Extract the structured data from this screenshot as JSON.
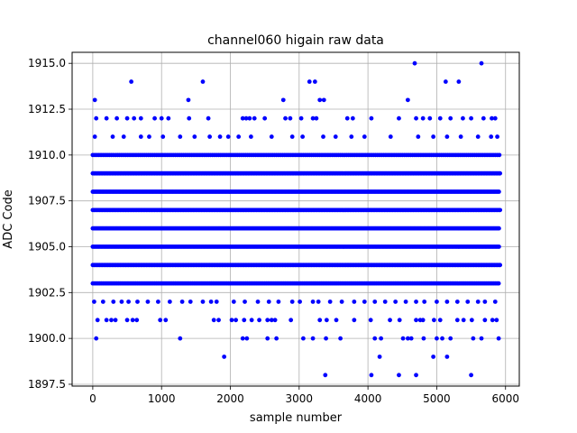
{
  "chart_data": {
    "type": "scatter",
    "title": "channel060 higain raw data",
    "xlabel": "sample number",
    "ylabel": "ADC Code",
    "xlim": [
      -300,
      6200
    ],
    "ylim": [
      1897.4,
      1915.6
    ],
    "x_ticks": [
      0,
      1000,
      2000,
      3000,
      4000,
      5000,
      6000
    ],
    "x_tick_labels": [
      "0",
      "1000",
      "2000",
      "3000",
      "4000",
      "5000",
      "6000"
    ],
    "y_ticks": [
      1897.5,
      1900.0,
      1902.5,
      1905.0,
      1907.5,
      1910.0,
      1912.5,
      1915.0
    ],
    "y_tick_labels": [
      "1897.5",
      "1900.0",
      "1902.5",
      "1905.0",
      "1907.5",
      "1910.0",
      "1912.5",
      "1915.0"
    ],
    "grid": true,
    "marker_color": "#0000ff",
    "series": [
      {
        "levels": [
          {
            "y": 1903,
            "x_start": 0,
            "x_end": 5920,
            "step": 25
          },
          {
            "y": 1904,
            "x_start": 0,
            "x_end": 5920,
            "step": 20
          },
          {
            "y": 1905,
            "x_start": 0,
            "x_end": 5920,
            "step": 18
          },
          {
            "y": 1906,
            "x_start": 0,
            "x_end": 5920,
            "step": 18
          },
          {
            "y": 1907,
            "x_start": 0,
            "x_end": 5920,
            "step": 20
          },
          {
            "y": 1908,
            "x_start": 0,
            "x_end": 5920,
            "step": 18
          },
          {
            "y": 1909,
            "x_start": 0,
            "x_end": 5920,
            "step": 20
          },
          {
            "y": 1910,
            "x_start": 0,
            "x_end": 5920,
            "step": 30
          }
        ],
        "points": [
          [
            30,
            1913
          ],
          [
            560,
            1914
          ],
          [
            1390,
            1913
          ],
          [
            1600,
            1914
          ],
          [
            2770,
            1913
          ],
          [
            3150,
            1914
          ],
          [
            3230,
            1914
          ],
          [
            3300,
            1913
          ],
          [
            3360,
            1913
          ],
          [
            4580,
            1913
          ],
          [
            5130,
            1914
          ],
          [
            5320,
            1914
          ],
          [
            4680,
            1915
          ],
          [
            5650,
            1915
          ],
          [
            30,
            1911
          ],
          [
            290,
            1911
          ],
          [
            450,
            1911
          ],
          [
            700,
            1911
          ],
          [
            820,
            1911
          ],
          [
            1020,
            1911
          ],
          [
            1270,
            1911
          ],
          [
            1480,
            1911
          ],
          [
            1700,
            1911
          ],
          [
            1850,
            1911
          ],
          [
            1970,
            1911
          ],
          [
            2120,
            1911
          ],
          [
            2300,
            1911
          ],
          [
            2600,
            1911
          ],
          [
            2900,
            1911
          ],
          [
            3050,
            1911
          ],
          [
            3350,
            1911
          ],
          [
            3530,
            1911
          ],
          [
            3760,
            1911
          ],
          [
            3950,
            1911
          ],
          [
            4330,
            1911
          ],
          [
            4730,
            1911
          ],
          [
            4950,
            1911
          ],
          [
            5150,
            1911
          ],
          [
            5350,
            1911
          ],
          [
            5600,
            1911
          ],
          [
            5790,
            1911
          ],
          [
            5880,
            1911
          ],
          [
            50,
            1912
          ],
          [
            200,
            1912
          ],
          [
            350,
            1912
          ],
          [
            500,
            1912
          ],
          [
            600,
            1912
          ],
          [
            700,
            1912
          ],
          [
            900,
            1912
          ],
          [
            1000,
            1912
          ],
          [
            1100,
            1912
          ],
          [
            1400,
            1912
          ],
          [
            1680,
            1912
          ],
          [
            2180,
            1912
          ],
          [
            2230,
            1912
          ],
          [
            2280,
            1912
          ],
          [
            2350,
            1912
          ],
          [
            2500,
            1912
          ],
          [
            2800,
            1912
          ],
          [
            2870,
            1912
          ],
          [
            3030,
            1912
          ],
          [
            3200,
            1912
          ],
          [
            3250,
            1912
          ],
          [
            3700,
            1912
          ],
          [
            3780,
            1912
          ],
          [
            4050,
            1912
          ],
          [
            4450,
            1912
          ],
          [
            4700,
            1912
          ],
          [
            4800,
            1912
          ],
          [
            4900,
            1912
          ],
          [
            5050,
            1912
          ],
          [
            5200,
            1912
          ],
          [
            5380,
            1912
          ],
          [
            5500,
            1912
          ],
          [
            5680,
            1912
          ],
          [
            5800,
            1912
          ],
          [
            5850,
            1912
          ],
          [
            20,
            1902
          ],
          [
            150,
            1902
          ],
          [
            300,
            1902
          ],
          [
            420,
            1902
          ],
          [
            520,
            1902
          ],
          [
            650,
            1902
          ],
          [
            800,
            1902
          ],
          [
            950,
            1902
          ],
          [
            1120,
            1902
          ],
          [
            1300,
            1902
          ],
          [
            1420,
            1902
          ],
          [
            1600,
            1902
          ],
          [
            1720,
            1902
          ],
          [
            1800,
            1902
          ],
          [
            2050,
            1902
          ],
          [
            2210,
            1902
          ],
          [
            2400,
            1902
          ],
          [
            2560,
            1902
          ],
          [
            2700,
            1902
          ],
          [
            2900,
            1902
          ],
          [
            3010,
            1902
          ],
          [
            3200,
            1902
          ],
          [
            3280,
            1902
          ],
          [
            3450,
            1902
          ],
          [
            3620,
            1902
          ],
          [
            3800,
            1902
          ],
          [
            3950,
            1902
          ],
          [
            4100,
            1902
          ],
          [
            4250,
            1902
          ],
          [
            4400,
            1902
          ],
          [
            4550,
            1902
          ],
          [
            4700,
            1902
          ],
          [
            4820,
            1902
          ],
          [
            5000,
            1902
          ],
          [
            5150,
            1902
          ],
          [
            5300,
            1902
          ],
          [
            5450,
            1902
          ],
          [
            5600,
            1902
          ],
          [
            5700,
            1902
          ],
          [
            5850,
            1902
          ],
          [
            70,
            1901
          ],
          [
            200,
            1901
          ],
          [
            270,
            1901
          ],
          [
            330,
            1901
          ],
          [
            500,
            1901
          ],
          [
            580,
            1901
          ],
          [
            640,
            1901
          ],
          [
            980,
            1901
          ],
          [
            1060,
            1901
          ],
          [
            1760,
            1901
          ],
          [
            1830,
            1901
          ],
          [
            2020,
            1901
          ],
          [
            2080,
            1901
          ],
          [
            2200,
            1901
          ],
          [
            2310,
            1901
          ],
          [
            2420,
            1901
          ],
          [
            2540,
            1901
          ],
          [
            2600,
            1901
          ],
          [
            2650,
            1901
          ],
          [
            2880,
            1901
          ],
          [
            3300,
            1901
          ],
          [
            3400,
            1901
          ],
          [
            3540,
            1901
          ],
          [
            3800,
            1901
          ],
          [
            4040,
            1901
          ],
          [
            4320,
            1901
          ],
          [
            4460,
            1901
          ],
          [
            4700,
            1901
          ],
          [
            4760,
            1901
          ],
          [
            4800,
            1901
          ],
          [
            4960,
            1901
          ],
          [
            5050,
            1901
          ],
          [
            5300,
            1901
          ],
          [
            5390,
            1901
          ],
          [
            5510,
            1901
          ],
          [
            5700,
            1901
          ],
          [
            5810,
            1901
          ],
          [
            5870,
            1901
          ],
          [
            50,
            1900
          ],
          [
            1270,
            1900
          ],
          [
            2180,
            1900
          ],
          [
            2240,
            1900
          ],
          [
            2540,
            1900
          ],
          [
            2670,
            1900
          ],
          [
            3060,
            1900
          ],
          [
            3200,
            1900
          ],
          [
            3390,
            1900
          ],
          [
            3600,
            1900
          ],
          [
            4100,
            1900
          ],
          [
            4190,
            1900
          ],
          [
            4510,
            1900
          ],
          [
            4580,
            1900
          ],
          [
            4630,
            1900
          ],
          [
            4810,
            1900
          ],
          [
            5000,
            1900
          ],
          [
            5080,
            1900
          ],
          [
            5200,
            1900
          ],
          [
            5530,
            1900
          ],
          [
            5650,
            1900
          ],
          [
            5900,
            1900
          ],
          [
            1910,
            1899
          ],
          [
            4170,
            1899
          ],
          [
            4950,
            1899
          ],
          [
            5150,
            1899
          ],
          [
            3380,
            1898
          ],
          [
            4050,
            1898
          ],
          [
            4450,
            1898
          ],
          [
            4700,
            1898
          ],
          [
            5500,
            1898
          ]
        ]
      }
    ]
  }
}
